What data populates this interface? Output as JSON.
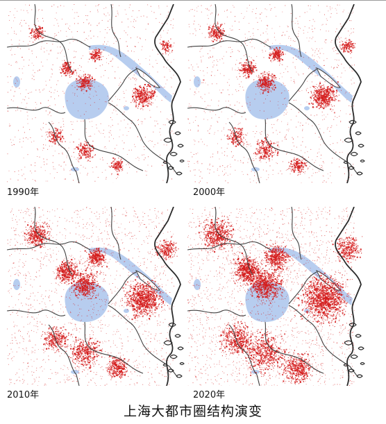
{
  "figure": {
    "caption": "上海大都市圈结构演变",
    "accent_color": "#d41c1c",
    "water_color": "#b7cdef",
    "boundary_color": "#3f3f3f"
  },
  "panels": [
    {
      "year_label": "1990年",
      "urban_extent": 0.15
    },
    {
      "year_label": "2000年",
      "urban_extent": 0.25
    },
    {
      "year_label": "2010年",
      "urban_extent": 0.55
    },
    {
      "year_label": "2020年",
      "urban_extent": 0.85
    }
  ]
}
